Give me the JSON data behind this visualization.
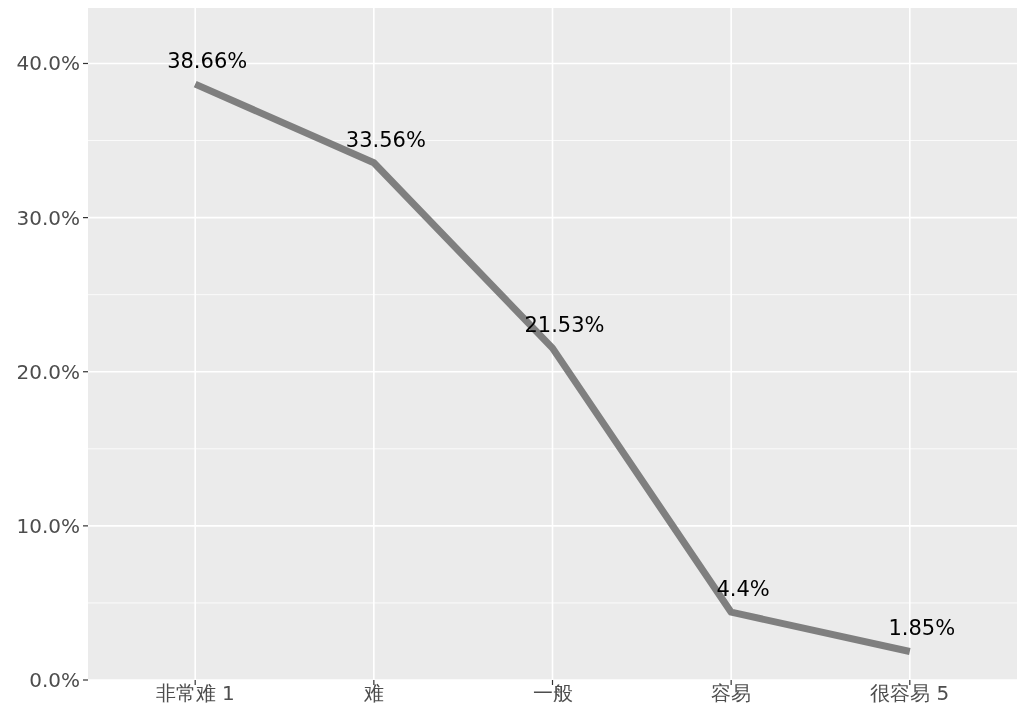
{
  "chart_data": {
    "type": "line",
    "categories": [
      "非常难 1",
      "难",
      "一般",
      "容易",
      "很容易 5"
    ],
    "series": [
      {
        "color": "#7f7f7f",
        "values": [
          38.66,
          33.56,
          21.53,
          4.4,
          1.85
        ],
        "value_labels": [
          "38.66%",
          "33.56%",
          "21.53%",
          "4.4%",
          "1.85%"
        ]
      }
    ],
    "ylim": [
      0,
      43.6
    ],
    "yticks": [
      {
        "value": 0,
        "label": "0.0%"
      },
      {
        "value": 5,
        "label": null
      },
      {
        "value": 10,
        "label": "10.0%"
      },
      {
        "value": 15,
        "label": null
      },
      {
        "value": 20,
        "label": "20.0%"
      },
      {
        "value": 25,
        "label": null
      },
      {
        "value": 30,
        "label": "30.0%"
      },
      {
        "value": 35,
        "label": null
      },
      {
        "value": 40,
        "label": "40.0%"
      }
    ],
    "grid": true,
    "marker": "none",
    "line_style": "solid"
  }
}
